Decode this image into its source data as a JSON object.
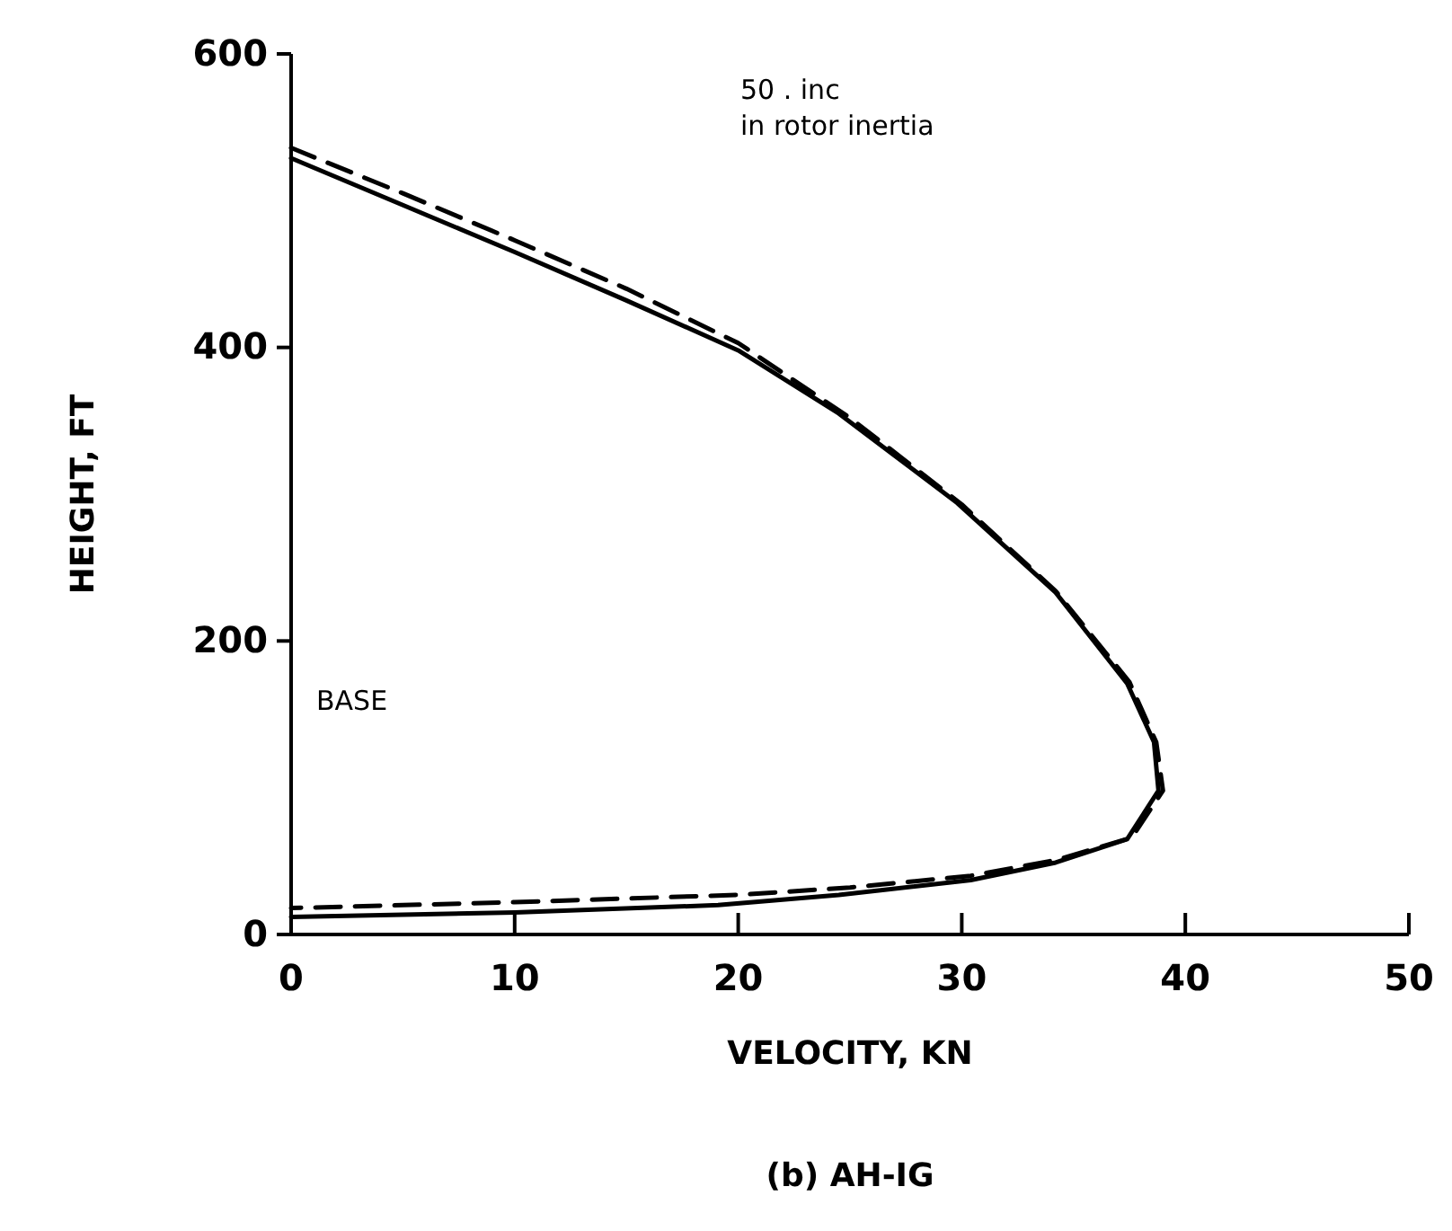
{
  "chart_data": {
    "type": "line",
    "title": "(b) AH-IG",
    "xlabel": "VELOCITY, KN",
    "ylabel": "HEIGHT, FT",
    "xlim": [
      0,
      50
    ],
    "ylim": [
      0,
      600
    ],
    "xticks": [
      0,
      10,
      20,
      30,
      40,
      50
    ],
    "yticks": [
      0,
      200,
      400,
      600
    ],
    "tick_labels": "xy",
    "legend": false,
    "grid": false,
    "marker": "none",
    "series": [
      {
        "name": "BASE",
        "color": "#000000",
        "line_style": "solid",
        "x": [
          0,
          5,
          10,
          15,
          20,
          24.5,
          29.8,
          34.2,
          37.4,
          38.6,
          38.8,
          37.4,
          34.2,
          30.4,
          24.5,
          19.1,
          10,
          0
        ],
        "values": [
          529,
          497,
          465,
          432,
          398,
          355,
          294,
          233,
          171,
          131,
          98,
          65,
          49,
          37,
          27,
          20,
          15,
          12
        ]
      },
      {
        "name": "50 . inc in rotor inertia",
        "color": "#000000",
        "line_style": "dashed",
        "x": [
          0,
          5,
          10,
          15,
          20,
          25,
          30,
          34.2,
          37.5,
          38.7,
          39,
          37.6,
          34.3,
          30.4,
          25,
          20,
          10,
          0
        ],
        "values": [
          536,
          505,
          473,
          440,
          403,
          352,
          293,
          234,
          172,
          131,
          98,
          66,
          51,
          40,
          32,
          27,
          22,
          18
        ]
      }
    ]
  }
}
